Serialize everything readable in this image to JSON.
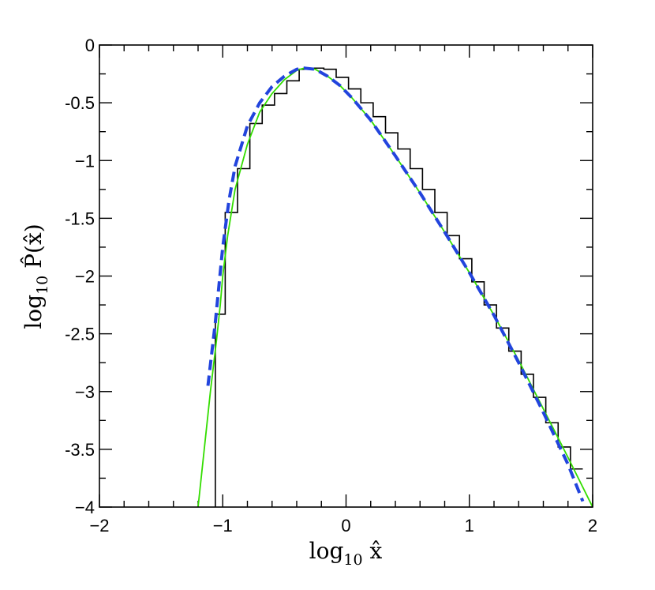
{
  "chart_data": {
    "type": "line",
    "title": "",
    "xlabel": {
      "base": "log",
      "sub": "10",
      "var": " x̂"
    },
    "ylabel": {
      "base": "log",
      "sub": "10",
      "var": " P̂(x̂)"
    },
    "xlim": [
      -2,
      2
    ],
    "ylim": [
      -4,
      0
    ],
    "x_ticks": [
      -2,
      -1,
      0,
      1,
      2
    ],
    "x_tick_labels": [
      "−2",
      "−1",
      "0",
      "1",
      "2"
    ],
    "y_ticks": [
      0,
      -0.5,
      -1,
      -1.5,
      -2,
      -2.5,
      -3,
      -3.5,
      -4
    ],
    "y_tick_labels": [
      "0",
      "-0.5",
      "−1",
      "-1.5",
      "−2",
      "-2.5",
      "−3",
      "-3.5",
      "−4"
    ],
    "grid": false,
    "legend": "none",
    "colors": {
      "histogram": "#000000",
      "fit_solid": "#33dd00",
      "fit_dashed": "#2244dd"
    },
    "series": [
      {
        "style": "step-histogram",
        "bin_edges": [
          -1.06,
          -0.98,
          -0.88,
          -0.78,
          -0.68,
          -0.58,
          -0.48,
          -0.38,
          -0.28,
          -0.18,
          -0.08,
          0.02,
          0.12,
          0.22,
          0.32,
          0.42,
          0.52,
          0.62,
          0.72,
          0.82,
          0.92,
          1.02,
          1.12,
          1.22,
          1.32,
          1.42,
          1.52,
          1.62,
          1.72,
          1.82,
          1.92
        ],
        "values": [
          -2.33,
          -1.45,
          -1.07,
          -0.68,
          -0.52,
          -0.42,
          -0.31,
          -0.21,
          -0.2,
          -0.21,
          -0.28,
          -0.38,
          -0.5,
          -0.62,
          -0.76,
          -0.9,
          -1.07,
          -1.25,
          -1.45,
          -1.65,
          -1.85,
          -2.05,
          -2.25,
          -2.45,
          -2.65,
          -2.85,
          -3.05,
          -3.27,
          -3.48,
          -3.67
        ],
        "baseline_edge": -1.06
      },
      {
        "style": "solid",
        "x": [
          -1.22,
          -1.15,
          -1.1,
          -1.05,
          -1.02,
          -1.0,
          -0.96,
          -0.9,
          -0.8,
          -0.7,
          -0.6,
          -0.5,
          -0.4,
          -0.34,
          -0.25,
          -0.15,
          -0.05,
          0.05,
          0.2,
          0.4,
          0.6,
          0.8,
          1.0,
          1.2,
          1.4,
          1.6,
          1.8,
          2.0
        ],
        "y": [
          -4.2,
          -3.5,
          -3.0,
          -2.55,
          -2.25,
          -2.0,
          -1.65,
          -1.25,
          -0.86,
          -0.58,
          -0.42,
          -0.3,
          -0.22,
          -0.2,
          -0.21,
          -0.27,
          -0.35,
          -0.46,
          -0.65,
          -0.96,
          -1.28,
          -1.62,
          -1.97,
          -2.34,
          -2.73,
          -3.15,
          -3.57,
          -4.0
        ]
      },
      {
        "style": "dashed",
        "x": [
          -1.12,
          -1.06,
          -1.0,
          -0.95,
          -0.9,
          -0.8,
          -0.7,
          -0.6,
          -0.5,
          -0.4,
          -0.34,
          -0.25,
          -0.15,
          -0.05,
          0.05,
          0.2,
          0.4,
          0.6,
          0.8,
          1.0,
          1.2,
          1.4,
          1.6,
          1.8,
          1.92
        ],
        "y": [
          -2.95,
          -2.4,
          -1.75,
          -1.35,
          -1.05,
          -0.7,
          -0.5,
          -0.36,
          -0.27,
          -0.21,
          -0.2,
          -0.21,
          -0.27,
          -0.35,
          -0.46,
          -0.65,
          -0.96,
          -1.28,
          -1.62,
          -1.97,
          -2.34,
          -2.75,
          -3.18,
          -3.63,
          -3.95
        ]
      }
    ]
  }
}
